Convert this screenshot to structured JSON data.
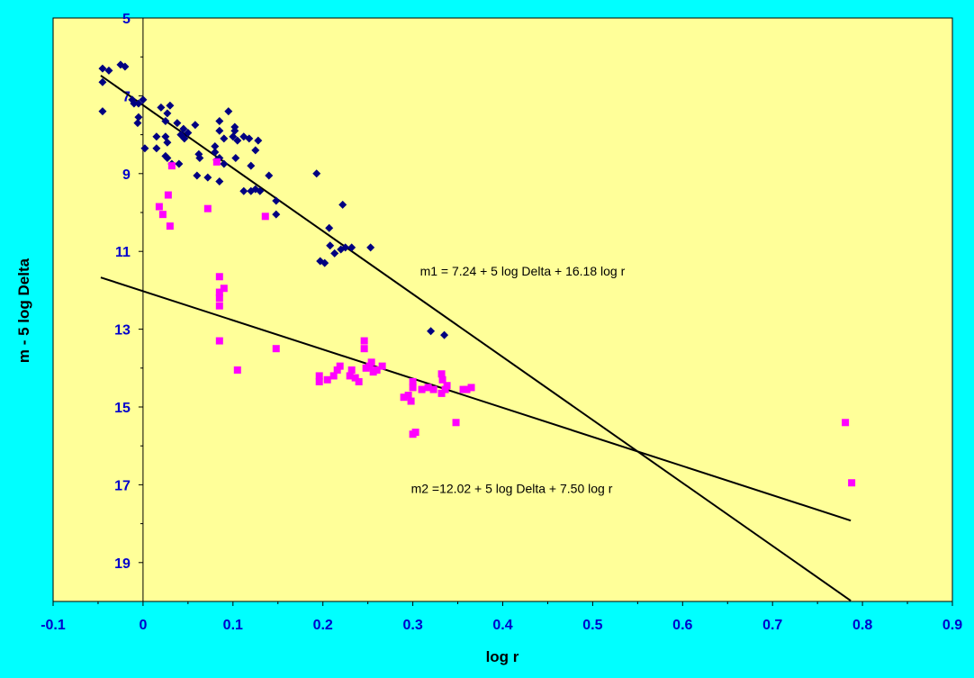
{
  "chart_data": {
    "type": "scatter",
    "title": "",
    "xlabel": "log r",
    "ylabel": "m - 5 log Delta",
    "xlim": [
      -0.1,
      0.9
    ],
    "ylim": [
      5,
      20
    ],
    "y_inverted": true,
    "grid": false,
    "legend": "none",
    "x_ticks": [
      "-0.1",
      "0",
      "0.1",
      "0.2",
      "0.3",
      "0.4",
      "0.5",
      "0.6",
      "0.7",
      "0.8",
      "0.9"
    ],
    "y_ticks": [
      "5",
      "7",
      "9",
      "11",
      "13",
      "15",
      "17",
      "19"
    ],
    "colors": {
      "background": "#00FFFF",
      "plot_area": "#FFFF99",
      "series1": "#000080",
      "series2": "#FF00FF",
      "tick_labels": "#0000CC",
      "fit_lines": "#000000"
    },
    "series": [
      {
        "marker": "diamond",
        "color": "#000080",
        "points": [
          [
            -0.045,
            6.3
          ],
          [
            -0.038,
            6.35
          ],
          [
            -0.025,
            6.2
          ],
          [
            -0.02,
            6.25
          ],
          [
            -0.045,
            6.65
          ],
          [
            -0.012,
            7.1
          ],
          [
            -0.005,
            7.2
          ],
          [
            0.0,
            7.1
          ],
          [
            -0.045,
            7.4
          ],
          [
            -0.01,
            7.2
          ],
          [
            -0.005,
            7.55
          ],
          [
            -0.006,
            7.7
          ],
          [
            0.02,
            7.3
          ],
          [
            0.03,
            7.25
          ],
          [
            0.027,
            7.45
          ],
          [
            0.025,
            7.65
          ],
          [
            0.038,
            7.7
          ],
          [
            0.045,
            7.85
          ],
          [
            0.042,
            8.0
          ],
          [
            0.05,
            7.95
          ],
          [
            0.046,
            8.1
          ],
          [
            0.058,
            7.75
          ],
          [
            0.015,
            8.05
          ],
          [
            0.025,
            8.05
          ],
          [
            0.027,
            8.2
          ],
          [
            0.002,
            8.35
          ],
          [
            0.015,
            8.35
          ],
          [
            0.025,
            8.55
          ],
          [
            0.027,
            8.6
          ],
          [
            0.032,
            8.75
          ],
          [
            0.04,
            8.75
          ],
          [
            0.062,
            8.5
          ],
          [
            0.063,
            8.6
          ],
          [
            0.08,
            8.45
          ],
          [
            0.08,
            8.3
          ],
          [
            0.085,
            7.65
          ],
          [
            0.085,
            7.9
          ],
          [
            0.09,
            8.1
          ],
          [
            0.095,
            7.4
          ],
          [
            0.102,
            7.8
          ],
          [
            0.102,
            7.9
          ],
          [
            0.1,
            8.05
          ],
          [
            0.105,
            8.15
          ],
          [
            0.112,
            8.05
          ],
          [
            0.118,
            8.1
          ],
          [
            0.128,
            8.15
          ],
          [
            0.082,
            8.65
          ],
          [
            0.09,
            8.75
          ],
          [
            0.085,
            8.6
          ],
          [
            0.103,
            8.6
          ],
          [
            0.12,
            8.8
          ],
          [
            0.125,
            8.4
          ],
          [
            0.06,
            9.05
          ],
          [
            0.072,
            9.1
          ],
          [
            0.085,
            9.2
          ],
          [
            0.112,
            9.45
          ],
          [
            0.12,
            9.45
          ],
          [
            0.125,
            9.4
          ],
          [
            0.13,
            9.45
          ],
          [
            0.14,
            9.05
          ],
          [
            0.148,
            9.7
          ],
          [
            0.148,
            10.05
          ],
          [
            0.193,
            9.0
          ],
          [
            0.222,
            9.8
          ],
          [
            0.207,
            10.4
          ],
          [
            0.208,
            10.85
          ],
          [
            0.213,
            11.05
          ],
          [
            0.22,
            10.95
          ],
          [
            0.225,
            10.9
          ],
          [
            0.232,
            10.9
          ],
          [
            0.197,
            11.25
          ],
          [
            0.202,
            11.3
          ],
          [
            0.253,
            10.9
          ],
          [
            0.32,
            13.05
          ],
          [
            0.335,
            13.15
          ]
        ]
      },
      {
        "marker": "square",
        "color": "#FF00FF",
        "points": [
          [
            0.032,
            8.8
          ],
          [
            0.082,
            8.7
          ],
          [
            0.028,
            9.55
          ],
          [
            0.018,
            9.85
          ],
          [
            0.022,
            10.05
          ],
          [
            0.03,
            10.35
          ],
          [
            0.072,
            9.9
          ],
          [
            0.136,
            10.1
          ],
          [
            0.085,
            11.65
          ],
          [
            0.09,
            11.95
          ],
          [
            0.085,
            12.05
          ],
          [
            0.085,
            12.2
          ],
          [
            0.085,
            12.4
          ],
          [
            0.085,
            13.3
          ],
          [
            0.105,
            14.05
          ],
          [
            0.148,
            13.5
          ],
          [
            0.246,
            13.3
          ],
          [
            0.246,
            13.5
          ],
          [
            0.196,
            14.2
          ],
          [
            0.196,
            14.35
          ],
          [
            0.205,
            14.3
          ],
          [
            0.212,
            14.2
          ],
          [
            0.216,
            14.05
          ],
          [
            0.219,
            13.95
          ],
          [
            0.23,
            14.2
          ],
          [
            0.232,
            14.05
          ],
          [
            0.236,
            14.25
          ],
          [
            0.24,
            14.35
          ],
          [
            0.248,
            14.0
          ],
          [
            0.252,
            13.95
          ],
          [
            0.254,
            13.85
          ],
          [
            0.256,
            14.1
          ],
          [
            0.26,
            14.05
          ],
          [
            0.266,
            13.95
          ],
          [
            0.29,
            14.75
          ],
          [
            0.295,
            14.7
          ],
          [
            0.298,
            14.85
          ],
          [
            0.3,
            14.5
          ],
          [
            0.3,
            14.35
          ],
          [
            0.31,
            14.55
          ],
          [
            0.317,
            14.5
          ],
          [
            0.323,
            14.55
          ],
          [
            0.332,
            14.15
          ],
          [
            0.333,
            14.3
          ],
          [
            0.332,
            14.65
          ],
          [
            0.336,
            14.55
          ],
          [
            0.338,
            14.45
          ],
          [
            0.356,
            14.55
          ],
          [
            0.36,
            14.55
          ],
          [
            0.365,
            14.5
          ],
          [
            0.3,
            15.7
          ],
          [
            0.303,
            15.65
          ],
          [
            0.348,
            15.4
          ],
          [
            0.781,
            15.4
          ],
          [
            0.788,
            16.95
          ]
        ]
      }
    ],
    "fit_lines": [
      {
        "x": [
          -0.047,
          0.787
        ],
        "y": [
          6.48,
          19.98
        ]
      },
      {
        "x": [
          -0.047,
          0.787
        ],
        "y": [
          11.67,
          17.92
        ]
      }
    ],
    "annotations": [
      {
        "text": "m1 = 7.24 + 5 log Delta + 16.18 log r",
        "x": 0.308,
        "y": 11.5
      },
      {
        "text": "m2 =12.02 + 5 log Delta + 7.50 log r",
        "x": 0.298,
        "y": 17.1
      }
    ]
  }
}
